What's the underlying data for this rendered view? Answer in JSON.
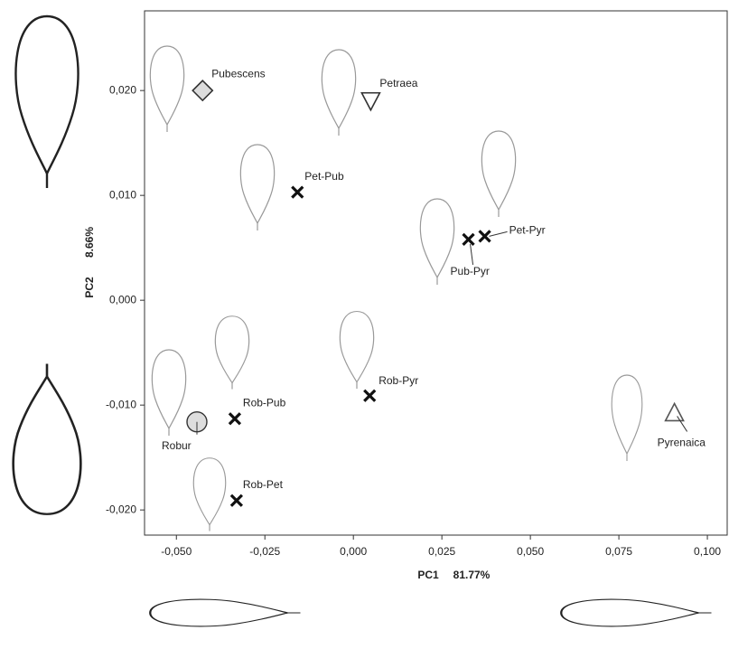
{
  "chart_data": {
    "type": "scatter",
    "x_label": "PC1",
    "x_label_pct": "81.77%",
    "y_label": "PC2",
    "y_label_pct": "8.66%",
    "xlim": [
      -0.059,
      0.1056
    ],
    "ylim": [
      -0.0224,
      0.0276
    ],
    "xticks": [
      {
        "value": -0.05,
        "label": "-0,050"
      },
      {
        "value": -0.025,
        "label": "-0,025"
      },
      {
        "value": 0,
        "label": "0,000"
      },
      {
        "value": 0.025,
        "label": "0,025"
      },
      {
        "value": 0.05,
        "label": "0,050"
      },
      {
        "value": 0.075,
        "label": "0,075"
      },
      {
        "value": 0.1,
        "label": "0,100"
      }
    ],
    "yticks": [
      {
        "value": 0.02,
        "label": "0,020"
      },
      {
        "value": 0.01,
        "label": "0,010"
      },
      {
        "value": 0,
        "label": "0,000"
      },
      {
        "value": -0.01,
        "label": "-0,010"
      },
      {
        "value": -0.02,
        "label": "-0,020"
      }
    ],
    "points": [
      {
        "label": "Pubescens",
        "x": -0.0426,
        "y": 0.02,
        "marker": "diamond"
      },
      {
        "label": "Petraea",
        "x": 0.0049,
        "y": 0.019,
        "marker": "triangle-down"
      },
      {
        "label": "Pet-Pub",
        "x": -0.0158,
        "y": 0.0103,
        "marker": "x"
      },
      {
        "label": "Pub-Pyr",
        "x": 0.0325,
        "y": 0.0058,
        "marker": "x"
      },
      {
        "label": "Pet-Pyr",
        "x": 0.0371,
        "y": 0.0061,
        "marker": "x"
      },
      {
        "label": "Robur",
        "x": -0.0442,
        "y": -0.0116,
        "marker": "circle"
      },
      {
        "label": "Rob-Pub",
        "x": -0.0335,
        "y": -0.0113,
        "marker": "x"
      },
      {
        "label": "Rob-Pyr",
        "x": 0.0046,
        "y": -0.0091,
        "marker": "x"
      },
      {
        "label": "Rob-Pet",
        "x": -0.033,
        "y": -0.0191,
        "marker": "x"
      },
      {
        "label": "Pyrenaica",
        "x": 0.0907,
        "y": -0.0108,
        "marker": "triangle-up"
      }
    ]
  }
}
